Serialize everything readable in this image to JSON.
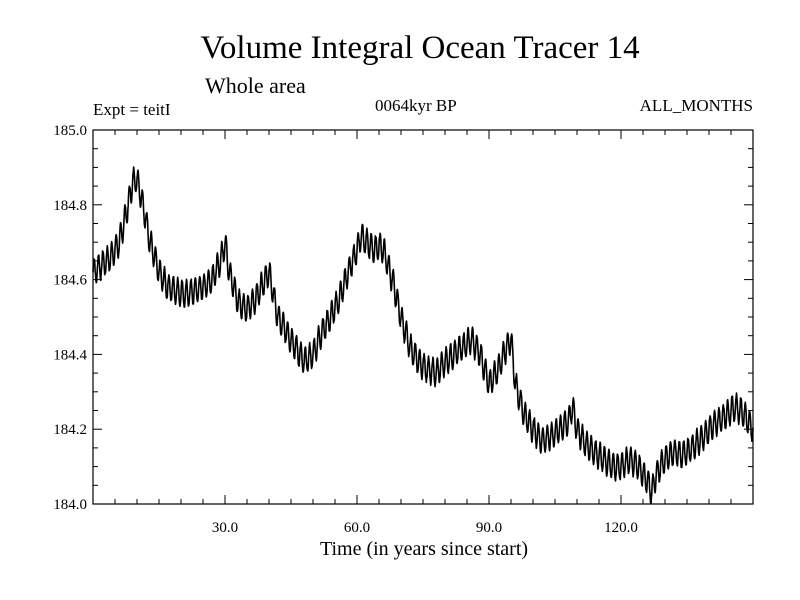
{
  "header": {
    "title": "Volume Integral Ocean Tracer 14",
    "subtitle": "Whole area",
    "experiment": "Expt = teitI",
    "period": "0064kyr BP",
    "months": "ALL_MONTHS"
  },
  "chart_data": {
    "type": "line",
    "title": "Volume Integral Ocean Tracer 14",
    "xlabel": "Time (in years since start)",
    "ylabel": "",
    "xlim": [
      0,
      150
    ],
    "ylim": [
      184.0,
      185.0
    ],
    "xticks": [
      30.0,
      60.0,
      90.0,
      120.0
    ],
    "xtick_labels": [
      "30.0",
      "60.0",
      "90.0",
      "120.0"
    ],
    "yticks": [
      184.0,
      184.2,
      184.4,
      184.6,
      184.8,
      185.0
    ],
    "ytick_labels": [
      "184.0",
      "184.2",
      "184.4",
      "184.6",
      "184.8",
      "185.0"
    ],
    "grid": false,
    "line_color": "#000000",
    "series": [
      {
        "x": [
          0,
          2,
          4,
          6,
          8,
          9,
          10,
          11,
          13,
          15,
          17,
          19,
          21,
          23,
          25,
          27,
          29,
          30,
          31,
          33,
          35,
          37,
          39,
          40,
          42,
          44,
          46,
          48,
          50,
          52,
          54,
          56,
          58,
          60,
          61,
          62,
          64,
          65,
          66,
          68,
          70,
          72,
          74,
          76,
          78,
          80,
          82,
          84,
          86,
          88,
          90,
          92,
          94,
          95,
          96,
          98,
          100,
          102,
          104,
          106,
          108,
          109,
          110,
          112,
          114,
          116,
          118,
          120,
          122,
          124,
          126,
          127,
          128,
          130,
          132,
          134,
          136,
          138,
          140,
          142,
          144,
          146,
          148,
          150
        ],
        "y": [
          184.62,
          184.64,
          184.66,
          184.7,
          184.8,
          184.86,
          184.87,
          184.82,
          184.7,
          184.62,
          184.58,
          184.57,
          184.56,
          184.57,
          184.58,
          184.6,
          184.65,
          184.7,
          184.62,
          184.54,
          184.52,
          184.55,
          184.6,
          184.62,
          184.5,
          184.46,
          184.42,
          184.38,
          184.4,
          184.46,
          184.5,
          184.55,
          184.62,
          184.68,
          184.72,
          184.7,
          184.68,
          184.69,
          184.68,
          184.6,
          184.5,
          184.42,
          184.38,
          184.36,
          184.35,
          184.38,
          184.4,
          184.42,
          184.44,
          184.4,
          184.32,
          184.36,
          184.42,
          184.44,
          184.32,
          184.24,
          184.2,
          184.17,
          184.18,
          184.2,
          184.22,
          184.26,
          184.2,
          184.16,
          184.14,
          184.12,
          184.1,
          184.1,
          184.12,
          184.1,
          184.06,
          184.03,
          184.08,
          184.12,
          184.14,
          184.13,
          184.15,
          184.17,
          184.2,
          184.22,
          184.24,
          184.26,
          184.24,
          184.2
        ]
      }
    ]
  }
}
